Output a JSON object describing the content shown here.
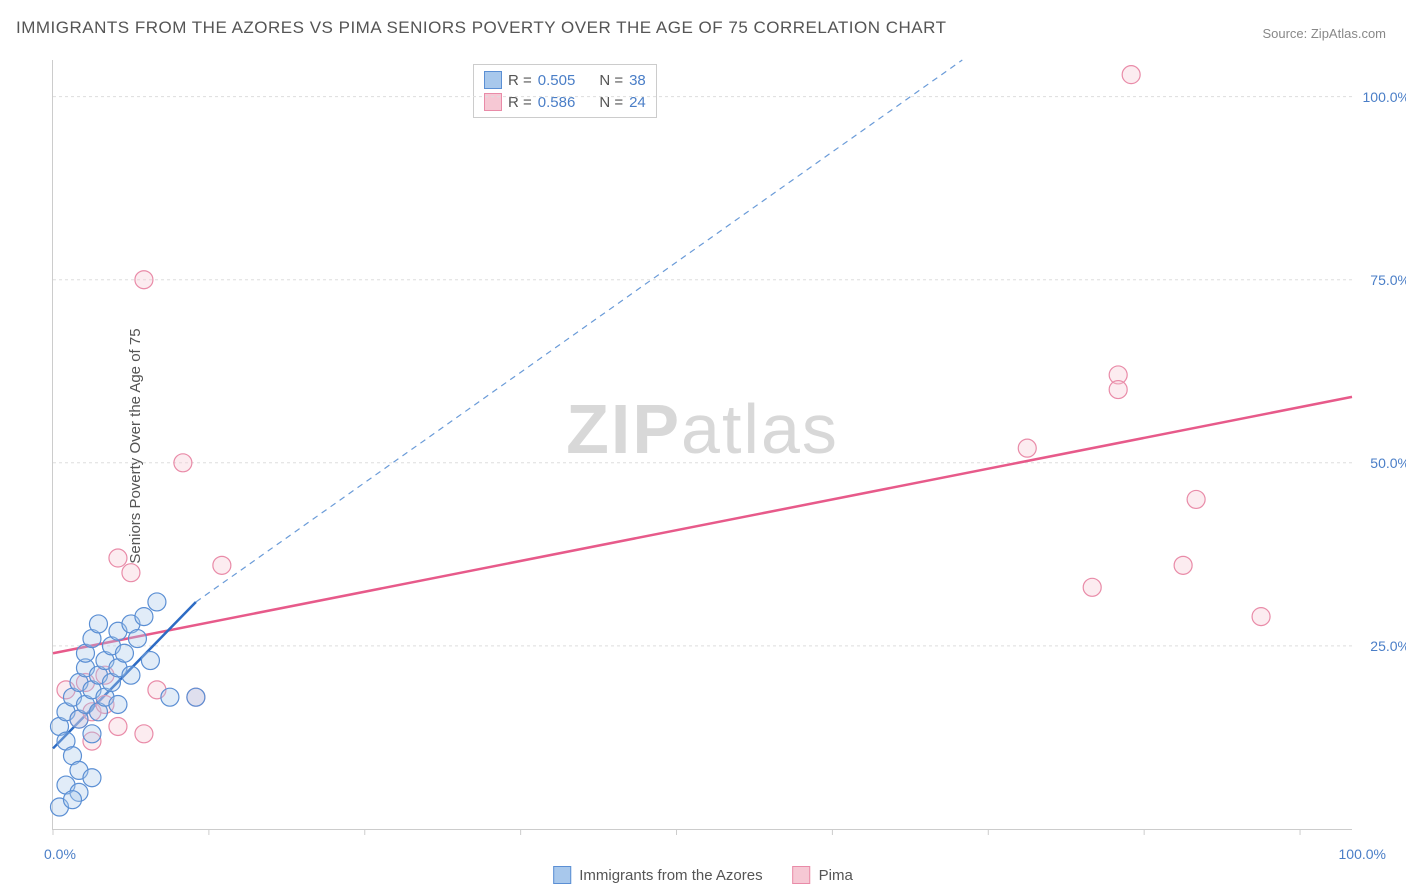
{
  "title": "IMMIGRANTS FROM THE AZORES VS PIMA SENIORS POVERTY OVER THE AGE OF 75 CORRELATION CHART",
  "source": "Source: ZipAtlas.com",
  "ylabel": "Seniors Poverty Over the Age of 75",
  "watermark": {
    "bold": "ZIP",
    "rest": "atlas"
  },
  "chart": {
    "type": "scatter",
    "xlim": [
      0,
      100
    ],
    "ylim": [
      0,
      105
    ],
    "xtick_positions": [
      0,
      12,
      24,
      36,
      48,
      60,
      72,
      84,
      96
    ],
    "xtick_labels_shown": {
      "0": "0.0%",
      "100": "100.0%"
    },
    "ytick_positions": [
      25,
      50,
      75,
      100
    ],
    "ytick_labels": [
      "25.0%",
      "50.0%",
      "75.0%",
      "100.0%"
    ],
    "grid_color": "#dddddd",
    "axis_color": "#cccccc",
    "background_color": "#ffffff",
    "marker_radius": 9,
    "marker_stroke_width": 1.2,
    "marker_fill_opacity": 0.35
  },
  "series": [
    {
      "name": "Immigrants from the Azores",
      "short": "azores",
      "color_fill": "#a8c8ec",
      "color_stroke": "#5b8fd4",
      "r_value": "0.505",
      "n_value": "38",
      "points": [
        [
          0.5,
          14
        ],
        [
          1,
          16
        ],
        [
          1,
          12
        ],
        [
          1.5,
          10
        ],
        [
          1.5,
          18
        ],
        [
          2,
          20
        ],
        [
          2,
          15
        ],
        [
          2,
          8
        ],
        [
          2.5,
          22
        ],
        [
          2.5,
          17
        ],
        [
          2.5,
          24
        ],
        [
          3,
          13
        ],
        [
          3,
          19
        ],
        [
          3,
          26
        ],
        [
          3.5,
          21
        ],
        [
          3.5,
          16
        ],
        [
          3.5,
          28
        ],
        [
          4,
          23
        ],
        [
          4,
          18
        ],
        [
          4.5,
          25
        ],
        [
          4.5,
          20
        ],
        [
          5,
          27
        ],
        [
          5,
          22
        ],
        [
          5.5,
          24
        ],
        [
          6,
          28
        ],
        [
          6,
          21
        ],
        [
          6.5,
          26
        ],
        [
          7,
          29
        ],
        [
          7.5,
          23
        ],
        [
          8,
          31
        ],
        [
          1,
          6
        ],
        [
          2,
          5
        ],
        [
          0.5,
          3
        ],
        [
          3,
          7
        ],
        [
          1.5,
          4
        ],
        [
          5,
          17
        ],
        [
          9,
          18
        ],
        [
          11,
          18
        ]
      ],
      "trendline": {
        "x1": 0,
        "y1": 11,
        "x2": 11,
        "y2": 31,
        "dashed": false,
        "width": 2.5
      },
      "trendline_ext": {
        "x1": 11,
        "y1": 31,
        "x2": 70,
        "y2": 105,
        "dashed": true,
        "width": 1.2
      }
    },
    {
      "name": "Pima",
      "short": "pima",
      "color_fill": "#f6c8d4",
      "color_stroke": "#e98ba8",
      "r_value": "0.586",
      "n_value": "24",
      "points": [
        [
          1,
          19
        ],
        [
          2,
          15
        ],
        [
          2.5,
          20
        ],
        [
          3,
          12
        ],
        [
          4,
          21
        ],
        [
          5,
          14
        ],
        [
          5,
          37
        ],
        [
          6,
          35
        ],
        [
          7,
          13
        ],
        [
          8,
          19
        ],
        [
          10,
          50
        ],
        [
          11,
          18
        ],
        [
          13,
          36
        ],
        [
          7,
          75
        ],
        [
          75,
          52
        ],
        [
          80,
          33
        ],
        [
          82,
          62
        ],
        [
          82,
          60
        ],
        [
          83,
          103
        ],
        [
          87,
          36
        ],
        [
          88,
          45
        ],
        [
          93,
          29
        ],
        [
          3,
          16
        ],
        [
          4,
          17
        ]
      ],
      "trendline": {
        "x1": 0,
        "y1": 24,
        "x2": 100,
        "y2": 59,
        "dashed": false,
        "width": 2.5
      }
    }
  ],
  "legend_bottom": [
    {
      "label": "Immigrants from the Azores",
      "fill": "#a8c8ec",
      "stroke": "#5b8fd4"
    },
    {
      "label": "Pima",
      "fill": "#f6c8d4",
      "stroke": "#e98ba8"
    }
  ]
}
